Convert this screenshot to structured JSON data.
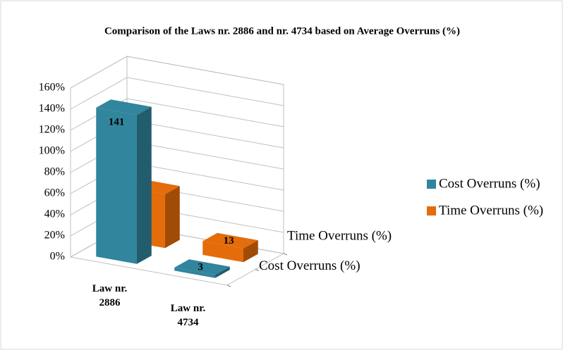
{
  "chart_data": {
    "type": "bar3d",
    "title": "Comparison of the Laws nr. 2886 and nr. 4734 based on Average Overruns (%)",
    "categories": [
      "Law nr. 2886",
      "Law nr. 4734"
    ],
    "series": [
      {
        "name": "Cost Overruns (%)",
        "color": "#31859c",
        "values": [
          141,
          3
        ]
      },
      {
        "name": "Time Overruns (%)",
        "color": "#e46c0a",
        "values": [
          51,
          13
        ]
      }
    ],
    "ylim": [
      0,
      160
    ],
    "yticks": [
      {
        "value": 0,
        "label": "0%"
      },
      {
        "value": 20,
        "label": "20%"
      },
      {
        "value": 40,
        "label": "40%"
      },
      {
        "value": 60,
        "label": "60%"
      },
      {
        "value": 80,
        "label": "80%"
      },
      {
        "value": 100,
        "label": "100%"
      },
      {
        "value": 120,
        "label": "120%"
      },
      {
        "value": 140,
        "label": "140%"
      },
      {
        "value": 160,
        "label": "160%"
      }
    ],
    "grid": true,
    "legend": "right"
  }
}
